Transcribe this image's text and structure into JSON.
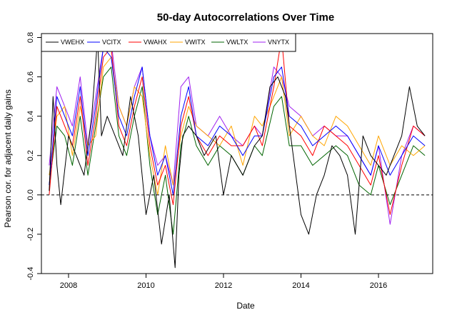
{
  "chart_data": {
    "type": "line",
    "title": "50-day Autocorrelations Over Time",
    "xlabel": "Date",
    "ylabel": "Pearson cor. for adjacent daily gains",
    "xlim": [
      2007.3,
      2017.4
    ],
    "ylim": [
      -0.4,
      0.82
    ],
    "x_ticks": [
      2008,
      2010,
      2012,
      2014,
      2016
    ],
    "y_ticks": [
      -0.4,
      -0.2,
      0.0,
      0.2,
      0.4,
      0.6,
      0.8
    ],
    "reference_line": {
      "y": 0.0,
      "style": "dashed"
    },
    "grid": false,
    "legend_position": "top-left",
    "series": [
      {
        "name": "VWEHX",
        "color": "#000000",
        "x": [
          2007.5,
          2007.6,
          2007.7,
          2007.8,
          2008.0,
          2008.2,
          2008.4,
          2008.6,
          2008.75,
          2008.85,
          2009.0,
          2009.2,
          2009.4,
          2009.6,
          2009.8,
          2010.0,
          2010.2,
          2010.4,
          2010.6,
          2010.75,
          2010.85,
          2010.95,
          2011.1,
          2011.3,
          2011.5,
          2011.8,
          2012.0,
          2012.2,
          2012.5,
          2012.8,
          2013.0,
          2013.2,
          2013.4,
          2013.6,
          2013.8,
          2014.0,
          2014.2,
          2014.4,
          2014.6,
          2014.8,
          2015.0,
          2015.2,
          2015.4,
          2015.6,
          2015.8,
          2016.0,
          2016.2,
          2016.4,
          2016.6,
          2016.8,
          2017.0,
          2017.2
        ],
        "values": [
          0.02,
          0.5,
          0.15,
          -0.05,
          0.3,
          0.2,
          0.1,
          0.4,
          0.8,
          0.3,
          0.4,
          0.3,
          0.2,
          0.5,
          0.3,
          -0.1,
          0.1,
          -0.25,
          0.0,
          -0.37,
          0.1,
          0.3,
          0.35,
          0.3,
          0.2,
          0.3,
          0.0,
          0.2,
          0.1,
          0.25,
          0.3,
          0.55,
          0.6,
          0.5,
          0.2,
          -0.1,
          -0.2,
          0.0,
          0.1,
          0.25,
          0.2,
          0.1,
          -0.2,
          0.3,
          0.2,
          0.15,
          0.1,
          0.2,
          0.3,
          0.55,
          0.35,
          0.3
        ]
      },
      {
        "name": "VCITX",
        "color": "#0000ff",
        "x": [
          2007.5,
          2007.7,
          2007.9,
          2008.1,
          2008.3,
          2008.5,
          2008.7,
          2008.9,
          2009.1,
          2009.3,
          2009.5,
          2009.7,
          2009.9,
          2010.1,
          2010.3,
          2010.5,
          2010.7,
          2010.9,
          2011.1,
          2011.3,
          2011.6,
          2011.9,
          2012.2,
          2012.5,
          2012.8,
          2013.0,
          2013.3,
          2013.5,
          2013.7,
          2014.0,
          2014.3,
          2014.6,
          2014.9,
          2015.2,
          2015.5,
          2015.8,
          2016.0,
          2016.3,
          2016.6,
          2016.9,
          2017.2
        ],
        "values": [
          0.05,
          0.5,
          0.4,
          0.3,
          0.55,
          0.2,
          0.45,
          0.75,
          0.7,
          0.4,
          0.3,
          0.5,
          0.65,
          0.3,
          0.1,
          0.2,
          0.0,
          0.4,
          0.55,
          0.3,
          0.25,
          0.35,
          0.3,
          0.2,
          0.3,
          0.3,
          0.6,
          0.65,
          0.4,
          0.35,
          0.25,
          0.3,
          0.35,
          0.3,
          0.2,
          0.1,
          0.25,
          0.1,
          0.2,
          0.3,
          0.25
        ]
      },
      {
        "name": "VWAHX",
        "color": "#ff0000",
        "x": [
          2007.5,
          2007.7,
          2007.9,
          2008.1,
          2008.3,
          2008.5,
          2008.7,
          2008.9,
          2009.1,
          2009.3,
          2009.5,
          2009.7,
          2009.9,
          2010.1,
          2010.3,
          2010.5,
          2010.7,
          2010.9,
          2011.1,
          2011.3,
          2011.6,
          2011.9,
          2012.2,
          2012.5,
          2012.8,
          2013.0,
          2013.3,
          2013.5,
          2013.7,
          2014.0,
          2014.3,
          2014.6,
          2014.9,
          2015.2,
          2015.5,
          2015.8,
          2016.0,
          2016.3,
          2016.6,
          2016.9,
          2017.2
        ],
        "values": [
          0.0,
          0.45,
          0.35,
          0.25,
          0.5,
          0.15,
          0.4,
          0.7,
          0.75,
          0.35,
          0.25,
          0.45,
          0.6,
          0.25,
          0.05,
          0.15,
          -0.05,
          0.35,
          0.5,
          0.3,
          0.2,
          0.3,
          0.25,
          0.25,
          0.35,
          0.25,
          0.55,
          0.8,
          0.35,
          0.3,
          0.2,
          0.35,
          0.3,
          0.25,
          0.15,
          0.05,
          0.2,
          -0.1,
          0.15,
          0.35,
          0.3
        ]
      },
      {
        "name": "VWITX",
        "color": "#ffa500",
        "x": [
          2007.5,
          2007.7,
          2007.9,
          2008.1,
          2008.3,
          2008.5,
          2008.7,
          2008.9,
          2009.1,
          2009.3,
          2009.5,
          2009.7,
          2009.9,
          2010.1,
          2010.3,
          2010.5,
          2010.7,
          2010.9,
          2011.1,
          2011.3,
          2011.6,
          2011.9,
          2012.2,
          2012.5,
          2012.8,
          2013.0,
          2013.3,
          2013.5,
          2013.7,
          2014.0,
          2014.3,
          2014.6,
          2014.9,
          2015.2,
          2015.5,
          2015.8,
          2016.0,
          2016.3,
          2016.6,
          2016.9,
          2017.2
        ],
        "values": [
          0.1,
          0.4,
          0.45,
          0.2,
          0.45,
          0.25,
          0.3,
          0.65,
          0.7,
          0.45,
          0.35,
          0.55,
          0.5,
          0.2,
          0.0,
          0.25,
          0.05,
          0.3,
          0.45,
          0.35,
          0.3,
          0.25,
          0.35,
          0.15,
          0.4,
          0.35,
          0.5,
          0.6,
          0.3,
          0.4,
          0.3,
          0.25,
          0.4,
          0.35,
          0.25,
          0.15,
          0.3,
          0.15,
          0.25,
          0.2,
          0.25
        ]
      },
      {
        "name": "VWLTX",
        "color": "#006400",
        "x": [
          2007.5,
          2007.7,
          2007.9,
          2008.1,
          2008.3,
          2008.5,
          2008.7,
          2008.9,
          2009.1,
          2009.3,
          2009.5,
          2009.7,
          2009.9,
          2010.1,
          2010.3,
          2010.5,
          2010.7,
          2010.9,
          2011.1,
          2011.3,
          2011.6,
          2011.9,
          2012.2,
          2012.5,
          2012.8,
          2013.0,
          2013.3,
          2013.5,
          2013.7,
          2014.0,
          2014.3,
          2014.6,
          2014.9,
          2015.2,
          2015.5,
          2015.8,
          2016.0,
          2016.3,
          2016.6,
          2016.9,
          2017.2
        ],
        "values": [
          0.05,
          0.35,
          0.3,
          0.15,
          0.4,
          0.1,
          0.35,
          0.6,
          0.65,
          0.3,
          0.2,
          0.4,
          0.55,
          0.15,
          -0.1,
          0.1,
          -0.2,
          0.25,
          0.4,
          0.25,
          0.15,
          0.25,
          0.2,
          0.1,
          0.25,
          0.2,
          0.45,
          0.5,
          0.25,
          0.25,
          0.15,
          0.2,
          0.25,
          0.2,
          0.05,
          0.0,
          0.15,
          -0.05,
          0.1,
          0.25,
          0.2
        ]
      },
      {
        "name": "VNYTX",
        "color": "#a020f0",
        "x": [
          2007.5,
          2007.7,
          2007.9,
          2008.1,
          2008.3,
          2008.5,
          2008.7,
          2008.9,
          2009.1,
          2009.3,
          2009.5,
          2009.7,
          2009.9,
          2010.1,
          2010.3,
          2010.5,
          2010.7,
          2010.9,
          2011.1,
          2011.3,
          2011.6,
          2011.9,
          2012.2,
          2012.5,
          2012.8,
          2013.0,
          2013.3,
          2013.5,
          2013.7,
          2014.0,
          2014.3,
          2014.6,
          2014.9,
          2015.2,
          2015.5,
          2015.8,
          2016.0,
          2016.3,
          2016.6,
          2016.9,
          2017.2
        ],
        "values": [
          0.15,
          0.55,
          0.45,
          0.35,
          0.6,
          0.25,
          0.5,
          0.75,
          0.78,
          0.45,
          0.35,
          0.55,
          0.65,
          0.3,
          0.15,
          0.2,
          0.05,
          0.55,
          0.6,
          0.35,
          0.3,
          0.4,
          0.3,
          0.25,
          0.35,
          0.3,
          0.65,
          0.6,
          0.45,
          0.4,
          0.3,
          0.35,
          0.3,
          0.3,
          0.2,
          0.1,
          0.25,
          -0.15,
          0.2,
          0.35,
          0.3
        ]
      }
    ]
  }
}
